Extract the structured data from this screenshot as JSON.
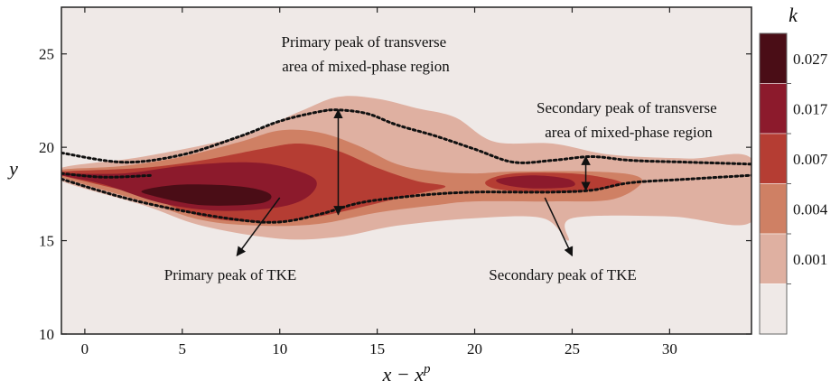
{
  "chart_data": {
    "type": "heatmap",
    "xlabel_base": "x − x",
    "xlabel_sup": "p",
    "ylabel": "y",
    "xlim": [
      -1.2,
      34.2
    ],
    "ylim": [
      10,
      27.5
    ],
    "x_ticks": [
      0,
      5,
      10,
      15,
      20,
      25,
      30
    ],
    "y_ticks": [
      10,
      15,
      20,
      25
    ],
    "colorbar": {
      "title": "k",
      "levels": [
        "0.027",
        "0.017",
        "0.007",
        "0.004",
        "0.001"
      ],
      "colors": [
        "#4a0d16",
        "#8c1a2c",
        "#b53d33",
        "#cf8064",
        "#dfb0a1",
        "#efe9e7"
      ]
    },
    "contour_bands": [
      {
        "level": "0.001",
        "color": "#dfb0a1",
        "outline": [
          [
            -1.2,
            18.9
          ],
          [
            3,
            19.5
          ],
          [
            8,
            20.6
          ],
          [
            11,
            21.9
          ],
          [
            13,
            22.7
          ],
          [
            15,
            22.6
          ],
          [
            17,
            22.1
          ],
          [
            19,
            21.6
          ],
          [
            21,
            20.3
          ],
          [
            24,
            20.2
          ],
          [
            27,
            19.6
          ],
          [
            31,
            19.4
          ],
          [
            34.2,
            19.4
          ],
          [
            34.2,
            16.0
          ],
          [
            30,
            16.3
          ],
          [
            25,
            16.2
          ],
          [
            24.8,
            15.0
          ],
          [
            23.5,
            16.2
          ],
          [
            20,
            16.2
          ],
          [
            16,
            15.8
          ],
          [
            13,
            15.2
          ],
          [
            10,
            15.1
          ],
          [
            6,
            15.8
          ],
          [
            3,
            16.9
          ],
          [
            -1.2,
            18.2
          ]
        ]
      },
      {
        "level": "0.004",
        "color": "#cf8064",
        "outline": [
          [
            -1.2,
            18.8
          ],
          [
            2,
            19.0
          ],
          [
            5,
            19.5
          ],
          [
            8,
            20.3
          ],
          [
            10,
            20.9
          ],
          [
            12,
            20.8
          ],
          [
            14,
            20.1
          ],
          [
            16,
            19.1
          ],
          [
            18,
            18.7
          ],
          [
            20,
            18.6
          ],
          [
            22,
            18.7
          ],
          [
            26,
            18.7
          ],
          [
            28.2,
            18.5
          ],
          [
            28.5,
            18.0
          ],
          [
            27,
            17.2
          ],
          [
            24,
            17.1
          ],
          [
            20,
            17.1
          ],
          [
            18,
            16.9
          ],
          [
            15,
            16.5
          ],
          [
            12,
            15.9
          ],
          [
            9,
            15.8
          ],
          [
            6,
            16.1
          ],
          [
            3,
            17.1
          ],
          [
            -1.2,
            18.4
          ]
        ]
      },
      {
        "level": "0.007",
        "color": "#b53d33",
        "outline": [
          [
            -1.2,
            18.7
          ],
          [
            3,
            18.9
          ],
          [
            6,
            19.3
          ],
          [
            9,
            19.9
          ],
          [
            11,
            20.2
          ],
          [
            13,
            19.8
          ],
          [
            15,
            18.9
          ],
          [
            17,
            18.2
          ],
          [
            18.5,
            17.9
          ],
          [
            17,
            17.5
          ],
          [
            15,
            17.0
          ],
          [
            12,
            16.3
          ],
          [
            9,
            16.0
          ],
          [
            6,
            16.3
          ],
          [
            3,
            17.4
          ],
          [
            -1.2,
            18.5
          ]
        ]
      },
      {
        "level": "0.007",
        "color": "#b53d33",
        "outline": [
          [
            20.6,
            18.2
          ],
          [
            22,
            18.6
          ],
          [
            25,
            18.6
          ],
          [
            27,
            18.3
          ],
          [
            27.5,
            18.0
          ],
          [
            26,
            17.7
          ],
          [
            23,
            17.6
          ],
          [
            21,
            17.8
          ]
        ]
      },
      {
        "level": "0.017",
        "color": "#8c1a2c",
        "outline": [
          [
            -1.2,
            18.6
          ],
          [
            2,
            18.6
          ],
          [
            5,
            19.0
          ],
          [
            8,
            19.2
          ],
          [
            10,
            19.0
          ],
          [
            11.8,
            18.3
          ],
          [
            11.5,
            17.4
          ],
          [
            10,
            16.8
          ],
          [
            7,
            16.6
          ],
          [
            4,
            17.0
          ],
          [
            1,
            18.0
          ],
          [
            -1.2,
            18.5
          ]
        ]
      },
      {
        "level": "0.017",
        "color": "#8c1a2c",
        "outline": [
          [
            21.2,
            18.3
          ],
          [
            23,
            18.5
          ],
          [
            24.8,
            18.3
          ],
          [
            25,
            17.9
          ],
          [
            23,
            17.8
          ],
          [
            21.5,
            18.0
          ]
        ]
      },
      {
        "level": "0.027",
        "color": "#4a0d16",
        "outline": [
          [
            3,
            17.7
          ],
          [
            5,
            18.0
          ],
          [
            8,
            17.9
          ],
          [
            9.5,
            17.5
          ],
          [
            9,
            17.0
          ],
          [
            6,
            16.9
          ],
          [
            3.5,
            17.4
          ]
        ]
      }
    ],
    "mixed_phase_boundary": {
      "upper": [
        [
          -1.2,
          19.7
        ],
        [
          2,
          19.2
        ],
        [
          5,
          19.6
        ],
        [
          8,
          20.6
        ],
        [
          10,
          21.4
        ],
        [
          12,
          21.9
        ],
        [
          13,
          22.0
        ],
        [
          14.5,
          21.8
        ],
        [
          16,
          21.2
        ],
        [
          18,
          20.6
        ],
        [
          20,
          19.9
        ],
        [
          22,
          19.2
        ],
        [
          24,
          19.3
        ],
        [
          26,
          19.5
        ],
        [
          28,
          19.3
        ],
        [
          31,
          19.2
        ],
        [
          34.2,
          19.1
        ]
      ],
      "lower": [
        [
          -1.2,
          18.3
        ],
        [
          2,
          17.3
        ],
        [
          5,
          16.6
        ],
        [
          8,
          16.1
        ],
        [
          10,
          16.0
        ],
        [
          12,
          16.4
        ],
        [
          14,
          17.0
        ],
        [
          16,
          17.3
        ],
        [
          18,
          17.5
        ],
        [
          20,
          17.6
        ],
        [
          22,
          17.6
        ],
        [
          24,
          17.6
        ],
        [
          26,
          17.7
        ],
        [
          28,
          18.1
        ],
        [
          31,
          18.3
        ],
        [
          34.2,
          18.5
        ]
      ],
      "inner_left": [
        [
          -1.2,
          18.6
        ],
        [
          1,
          18.4
        ],
        [
          3.5,
          18.5
        ]
      ]
    },
    "annotations": [
      {
        "id": "primary-area",
        "lines": [
          "Primary peak of transverse",
          "area of mixed-phase region"
        ]
      },
      {
        "id": "secondary-area",
        "lines": [
          "Secondary peak of transverse",
          "area of mixed-phase region"
        ]
      },
      {
        "id": "primary-tke",
        "lines": [
          "Primary peak of TKE"
        ]
      },
      {
        "id": "secondary-tke",
        "lines": [
          "Secondary peak of TKE"
        ]
      }
    ],
    "markers": {
      "primary_width": {
        "x": 13.0,
        "y1": 16.4,
        "y2": 22.0
      },
      "secondary_width": {
        "x": 25.7,
        "y1": 17.7,
        "y2": 19.5
      },
      "primary_tke_arrow": {
        "from": [
          10.0,
          17.3
        ],
        "to": [
          7.8,
          14.2
        ]
      },
      "secondary_tke_arrow": {
        "from": [
          23.6,
          17.3
        ],
        "to": [
          25.0,
          14.2
        ]
      }
    }
  }
}
